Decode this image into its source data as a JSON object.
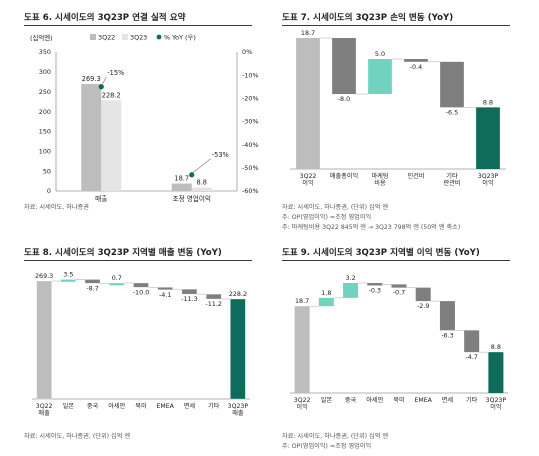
{
  "colors": {
    "gray": "#bdbdbd",
    "dark_gray": "#7f7f7f",
    "mint": "#6fd3c0",
    "teal": "#0f6b5a",
    "text": "#222222",
    "axis": "#9a9a9a"
  },
  "panels": [
    {
      "title": "도표 6. 시세이도의 3Q23P 연결 실적 요약",
      "notes": [
        "자료: 시세이도, 하나증권"
      ],
      "chart_data": {
        "type": "bar",
        "title": "도표 6. 시세이도의 3Q23P 연결 실적 요약",
        "unit_label": "(십억엔)",
        "categories": [
          "매출",
          "조정 영업이익"
        ],
        "series": [
          {
            "name": "3Q22",
            "values": [
              269.3,
              18.7
            ],
            "color": "#bdbdbd"
          },
          {
            "name": "3Q23",
            "values": [
              228.2,
              8.8
            ],
            "color": "#e4e4e4"
          }
        ],
        "line_series": {
          "name": "% YoY (우)",
          "values": [
            -15,
            -53
          ],
          "labels": [
            "-15%",
            "-53%"
          ],
          "color": "#0f6b5a"
        },
        "ylim": [
          0,
          350
        ],
        "yticks": [
          0,
          50,
          100,
          150,
          200,
          250,
          300,
          350
        ],
        "y2lim": [
          -60,
          0
        ],
        "y2ticks": [
          "0%",
          "-10%",
          "-20%",
          "-30%",
          "-40%",
          "-50%",
          "-60%"
        ],
        "legend": "top"
      }
    },
    {
      "title": "도표 7. 시세이도의 3Q23P 손익 변동 (YoY)",
      "notes": [
        "자료: 시세이도, 하나증권, (단위) 십억 엔",
        "주: OP(영업이익) =조정 영업이익",
        "주: 마케팅비용 3Q22 845억 엔 → 3Q23 798억 엔 (50억 엔 축소)"
      ],
      "chart_data": {
        "type": "waterfall",
        "title": "도표 7. 시세이도의 3Q23P 손익 변동 (YoY)",
        "categories": [
          "3Q22\n이익",
          "매출총이익",
          "마케팅\n비용",
          "인건비",
          "기타\n판관비",
          "3Q23P\n이익"
        ],
        "values": [
          18.7,
          -8.0,
          5.0,
          -0.4,
          -6.5,
          8.8
        ],
        "labels": [
          "18.7",
          "-8.0",
          "5.0",
          "-0.4",
          "-6.5",
          "8.8"
        ],
        "kinds": [
          "total",
          "delta",
          "delta",
          "delta",
          "delta",
          "total"
        ]
      }
    },
    {
      "title": "도표 8. 시세이도의 3Q23P 지역별 매출 변동 (YoY)",
      "notes": [
        "자료: 시세이도, 하나증권, (단위) 십억 엔"
      ],
      "chart_data": {
        "type": "waterfall",
        "title": "도표 8. 시세이도의 3Q23P 지역별 매출 변동 (YoY)",
        "categories": [
          "3Q22\n매출",
          "일본",
          "중국",
          "아세안",
          "북미",
          "EMEA",
          "면세",
          "기타",
          "3Q23P\n매출"
        ],
        "values": [
          269.3,
          3.5,
          -8.7,
          0.7,
          -10.0,
          -4.1,
          -11.3,
          -11.2,
          228.2
        ],
        "labels": [
          "269.3",
          "3.5",
          "-8.7",
          "0.7",
          "-10.0",
          "-4.1",
          "-11.3",
          "-11.2",
          "228.2"
        ],
        "kinds": [
          "total",
          "delta",
          "delta",
          "delta",
          "delta",
          "delta",
          "delta",
          "delta",
          "total"
        ]
      }
    },
    {
      "title": "도표 9. 시세이도의 3Q23P 지역별 이익 변동 (YoY)",
      "notes": [
        "자료: 시세이도, 하나증권, (단위) 십억 엔",
        "주: OP(영업이익) =조정 영업이익"
      ],
      "chart_data": {
        "type": "waterfall",
        "title": "도표 9. 시세이도의 3Q23P 지역별 이익 변동 (YoY)",
        "categories": [
          "3Q22\n이익",
          "일본",
          "중국",
          "아세안",
          "북미",
          "EMEA",
          "면세",
          "기타",
          "3Q23P\n이익"
        ],
        "values": [
          18.7,
          1.8,
          3.2,
          -0.3,
          -0.7,
          -2.9,
          -6.3,
          -4.7,
          8.8
        ],
        "labels": [
          "18.7",
          "1.8",
          "3.2",
          "-0.3",
          "-0.7",
          "-2.9",
          "-6.3",
          "-4.7",
          "8.8"
        ],
        "kinds": [
          "total",
          "delta",
          "delta",
          "delta",
          "delta",
          "delta",
          "delta",
          "delta",
          "total"
        ]
      }
    }
  ]
}
